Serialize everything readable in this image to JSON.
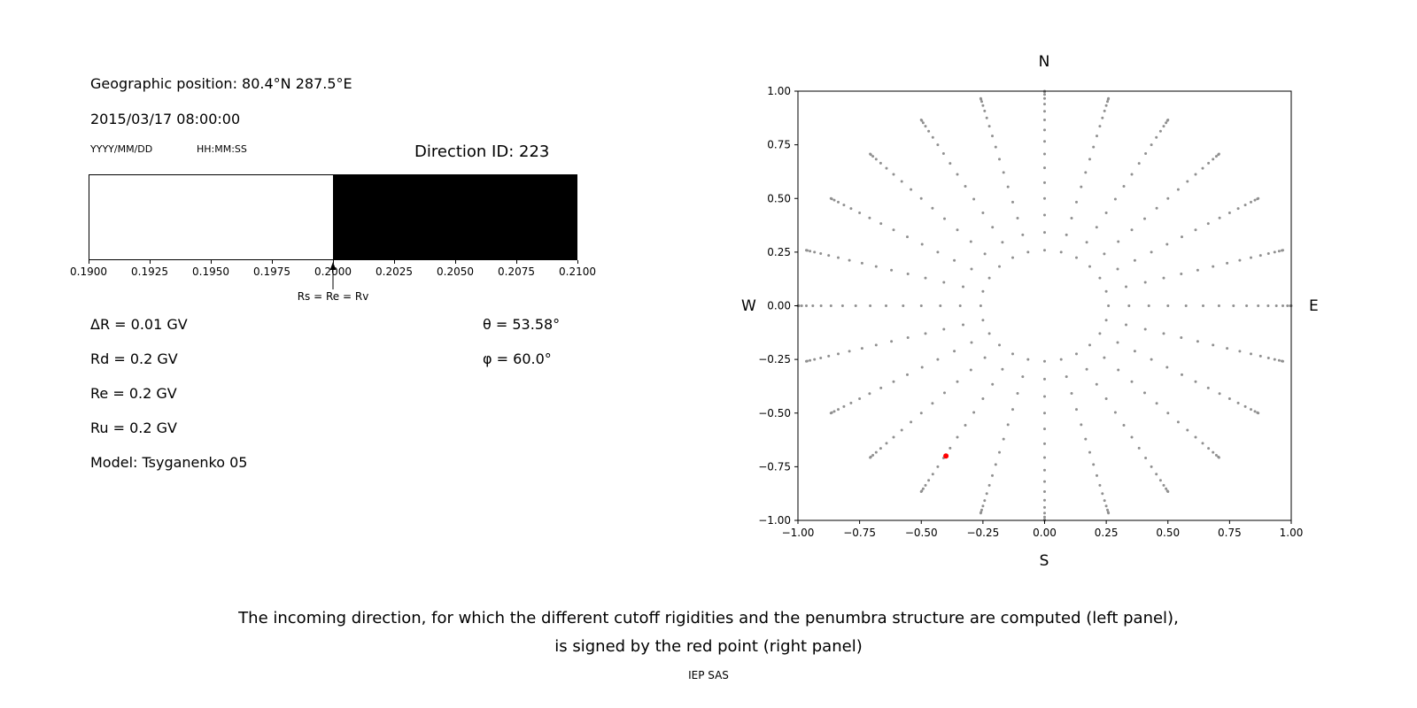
{
  "header": {
    "geo_position": "Geographic position: 80.4°N 287.5°E",
    "datetime": "2015/03/17 08:00:00",
    "date_format": "YYYY/MM/DD",
    "time_format": "HH:MM:SS",
    "direction_id": "Direction ID: 223"
  },
  "info": {
    "delta_r": "ΔR = 0.01 GV",
    "rd": "Rd = 0.2 GV",
    "re": "Re = 0.2 GV",
    "ru": "Ru = 0.2 GV",
    "model": "Model: Tsyganenko 05",
    "theta": "θ = 53.58°",
    "phi": "φ = 60.0°"
  },
  "caption": {
    "line1": "The incoming direction, for which the different cutoff rigidities and the penumbra structure are computed (left panel),",
    "line2": "is signed by the red point (right panel)",
    "credit": "IEP SAS"
  },
  "chart_data": [
    {
      "type": "bar",
      "name": "penumbra-structure",
      "xlim": [
        0.19,
        0.21
      ],
      "xtick_values": [
        0.19,
        0.1925,
        0.195,
        0.1975,
        0.2,
        0.2025,
        0.205,
        0.2075,
        0.21
      ],
      "xtick_labels": [
        "0.1900",
        "0.1925",
        "0.1950",
        "0.1975",
        "0.2000",
        "0.2025",
        "0.2050",
        "0.2075",
        "0.2100"
      ],
      "segments": [
        {
          "from": 0.19,
          "to": 0.2,
          "color": "#ffffff"
        },
        {
          "from": 0.2,
          "to": 0.21,
          "color": "#000000"
        }
      ],
      "annotation": {
        "x": 0.2,
        "label": "Rs = Re = Rv"
      }
    },
    {
      "type": "scatter",
      "name": "incoming-direction-map",
      "xlim": [
        -1,
        1
      ],
      "ylim": [
        -1,
        1
      ],
      "xtick_values": [
        -1,
        -0.75,
        -0.5,
        -0.25,
        0,
        0.25,
        0.5,
        0.75,
        1
      ],
      "xtick_labels": [
        "−1.00",
        "−0.75",
        "−0.50",
        "−0.25",
        "0.00",
        "0.25",
        "0.50",
        "0.75",
        "1.00"
      ],
      "ytick_values": [
        1,
        0.75,
        0.5,
        0.25,
        0,
        -0.25,
        -0.5,
        -0.75,
        -1
      ],
      "ytick_labels": [
        "1.00",
        "0.75",
        "0.50",
        "0.25",
        "0.00",
        "−0.25",
        "−0.50",
        "−0.75",
        "−1.00"
      ],
      "compass": {
        "top": "N",
        "bottom": "S",
        "left": "W",
        "right": "E"
      },
      "direction_grid": {
        "azimuth_step_deg": 15,
        "zenith_angles_deg": [
          15,
          20,
          25,
          30,
          35,
          40,
          45,
          50,
          55,
          60,
          65,
          70,
          75,
          80,
          85,
          90
        ],
        "projection": "r = sin(zenith)",
        "dot_color": "#909090"
      },
      "highlighted_direction": {
        "x": -0.4,
        "y": -0.7,
        "color": "#ff0000"
      }
    }
  ]
}
